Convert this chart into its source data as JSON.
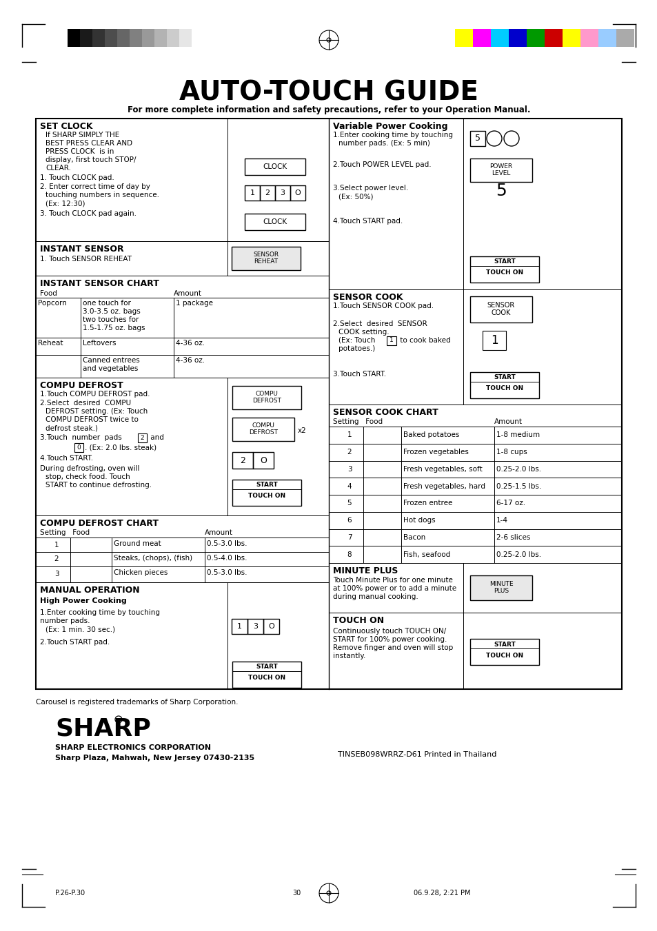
{
  "title": "AUTO-TOUCH GUIDE",
  "subtitle": "For more complete information and safety precautions, refer to your Operation Manual.",
  "bg_color": "#ffffff",
  "grayscale_bars": [
    "#000000",
    "#1a1a1a",
    "#333333",
    "#4d4d4d",
    "#666666",
    "#808080",
    "#999999",
    "#b3b3b3",
    "#cccccc",
    "#e6e6e6",
    "#ffffff"
  ],
  "color_bars": [
    "#ffff00",
    "#ff00ff",
    "#00ccff",
    "#0000cc",
    "#009900",
    "#cc0000",
    "#ffff00",
    "#ff99cc",
    "#99ccff",
    "#aaaaaa"
  ],
  "sharp_logo": "SHARP",
  "corp_line1": "SHARP ELECTRONICS CORPORATION",
  "corp_line2": "Sharp Plaza, Mahwah, New Jersey 07430-2135",
  "tinseb": "TINSEB098WRRZ-D61 Printed in Thailand",
  "page_left": "P.26-P.30",
  "page_center": "30",
  "page_right": "06.9.28, 2:21 PM",
  "carousel_note": "Carousel is registered trademarks of Sharp Corporation."
}
